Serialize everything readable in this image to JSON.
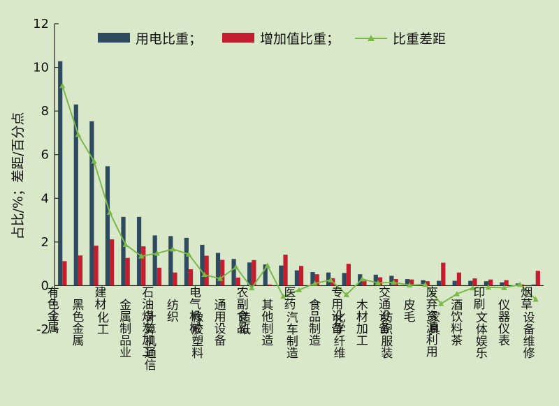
{
  "chart_data": {
    "type": "bar",
    "ylabel": "占比/%；差距/百分点",
    "ylim": [
      -2,
      12
    ],
    "yticks": [
      -2,
      0,
      2,
      4,
      6,
      8,
      10,
      12
    ],
    "grid": false,
    "legend_position": "top",
    "categories": [
      "有色金属",
      "黑色金属",
      "化工",
      "建材",
      "金属制品业",
      "计算机通信",
      "石油煤炭加工",
      "纺织",
      "橡胶塑料",
      "电气机械",
      "通用设备",
      "造纸",
      "农副食品",
      "其他制造",
      "汽车制造",
      "医药",
      "食品制造",
      "化学纤维",
      "专用设备",
      "木材加工",
      "纺织服装",
      "交通设备",
      "皮毛",
      "家具",
      "废弃资源利用",
      "酒饮料茶",
      "文体娱乐",
      "印刷",
      "仪器仪表",
      "设备维修",
      "烟草"
    ],
    "series": [
      {
        "name": "用电比重；",
        "kind": "bar",
        "color": "#2e4a5e",
        "values": [
          10.28,
          8.3,
          7.53,
          5.47,
          3.15,
          3.15,
          2.3,
          2.27,
          2.19,
          1.87,
          1.5,
          1.22,
          1.06,
          0.97,
          0.92,
          0.7,
          0.62,
          0.6,
          0.58,
          0.52,
          0.5,
          0.45,
          0.3,
          0.25,
          0.22,
          0.22,
          0.22,
          0.2,
          0.15,
          0.1,
          0.05
        ]
      },
      {
        "name": "增加值比重；",
        "kind": "bar",
        "color": "#c21e2e",
        "values": [
          1.12,
          1.38,
          1.83,
          2.12,
          1.27,
          1.8,
          0.82,
          0.6,
          0.75,
          1.37,
          1.18,
          0.37,
          1.17,
          0.05,
          1.42,
          0.9,
          0.52,
          0.34,
          1.0,
          0.22,
          0.38,
          0.3,
          0.28,
          0.2,
          1.05,
          0.6,
          0.33,
          0.28,
          0.25,
          0.05,
          0.68
        ]
      },
      {
        "name": "比重差距",
        "kind": "line",
        "color": "#7ab84a",
        "values": [
          9.16,
          6.92,
          5.7,
          3.35,
          1.88,
          1.35,
          1.48,
          1.67,
          1.44,
          0.5,
          0.32,
          0.85,
          -0.11,
          0.92,
          -0.5,
          -0.2,
          0.1,
          0.26,
          -0.42,
          0.3,
          0.12,
          0.15,
          0.02,
          0.05,
          -0.83,
          -0.38,
          -0.11,
          -0.08,
          -0.1,
          0.05,
          -0.63
        ]
      }
    ]
  }
}
